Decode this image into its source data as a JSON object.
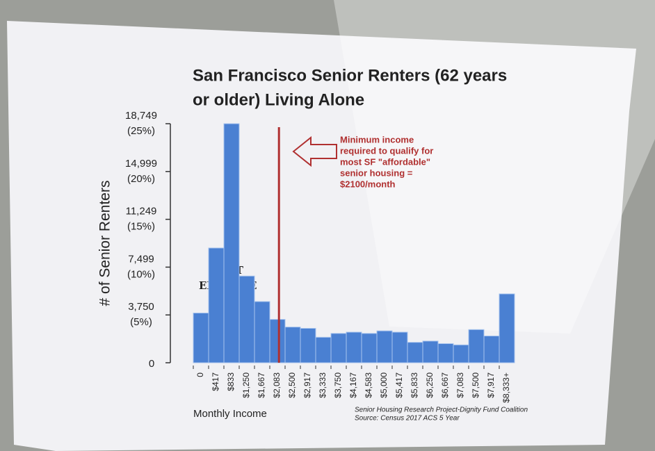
{
  "chart_data": {
    "type": "bar",
    "title": "San Francisco Senior Renters (62 years",
    "title_line2": "or older) Living Alone",
    "y_label": "# of Senior Renters",
    "x_label": "Monthly Income",
    "source_lines": [
      "Senior Housing Research Project-Dignity Fund Coalition",
      "Source: Census 2017 ACS 5 Year"
    ],
    "zone_label": [
      "NOT",
      "ELIGIBLE"
    ],
    "annotation": [
      "Minimum income",
      "required to qualify for",
      "most SF \"affordable\"",
      "senior housing =",
      "$2100/month"
    ],
    "categories": [
      "0",
      "$417",
      "$833",
      "$1,250",
      "$1,667",
      "$2,083",
      "$2,500",
      "$2,917",
      "$3,333",
      "$3,750",
      "$4,167",
      "$4,583",
      "$5,000",
      "$5,417",
      "$5,833",
      "$6,250",
      "$6,667",
      "$7,083",
      "$7,500",
      "$7,917",
      "$8,333+"
    ],
    "values": [
      3900,
      9000,
      18749,
      6800,
      4800,
      3400,
      2800,
      2700,
      2000,
      2300,
      2400,
      2300,
      2500,
      2400,
      1600,
      1700,
      1500,
      1400,
      2600,
      2100,
      5400
    ],
    "color": "#4a80d2",
    "ylim": [
      0,
      18749
    ],
    "yticks": [
      0,
      {
        "value": 3750,
        "label": "3,750",
        "percent": "(5%)"
      },
      {
        "value": 7499,
        "label": "7,499",
        "percent": "(10%)"
      },
      {
        "value": 11249,
        "label": "11,249",
        "percent": "(15%)"
      },
      {
        "value": 14999,
        "label": "14,999",
        "percent": "(20%)"
      },
      {
        "value": 18749,
        "label": "18,749",
        "percent": "(25%)"
      }
    ]
  }
}
